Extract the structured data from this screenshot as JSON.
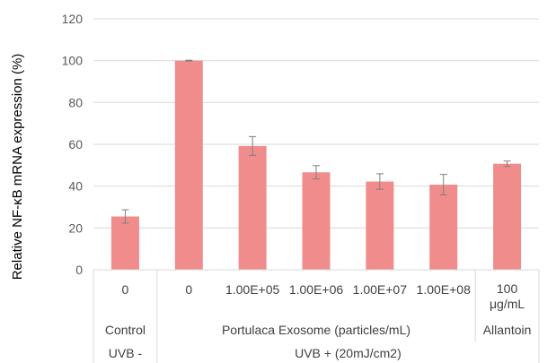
{
  "chart_data": {
    "type": "bar",
    "ylabel": "Relative NF-κB mRNA expression (%)",
    "ylim": [
      0,
      120
    ],
    "yticks": [
      0,
      20,
      40,
      60,
      80,
      100,
      120
    ],
    "grid": true,
    "legend": "none",
    "bar_color": "#f08c8c",
    "error_color": "#7f7f7f",
    "categories": [
      {
        "label": [
          "0"
        ]
      },
      {
        "label": [
          "0"
        ]
      },
      {
        "label": [
          "1.00E+05"
        ]
      },
      {
        "label": [
          "1.00E+06"
        ]
      },
      {
        "label": [
          "1.00E+07"
        ]
      },
      {
        "label": [
          "1.00E+08"
        ]
      },
      {
        "label": [
          "100",
          "μg/mL"
        ]
      }
    ],
    "values": [
      25.5,
      100,
      59.2,
      46.6,
      42.2,
      40.7,
      50.7
    ],
    "errors": [
      3.2,
      0.2,
      4.5,
      3.2,
      3.7,
      4.9,
      1.3
    ],
    "group_level1": [
      {
        "label": "Control",
        "span": [
          0,
          0
        ]
      },
      {
        "label": "Portulaca Exosome (particles/mL)",
        "span": [
          1,
          5
        ]
      },
      {
        "label": "Allantoin",
        "span": [
          6,
          6
        ]
      }
    ],
    "group_level2": [
      {
        "label": "UVB -",
        "span": [
          0,
          0
        ]
      },
      {
        "label": "UVB + (20mJ/cm2)",
        "span": [
          1,
          6
        ]
      }
    ]
  }
}
